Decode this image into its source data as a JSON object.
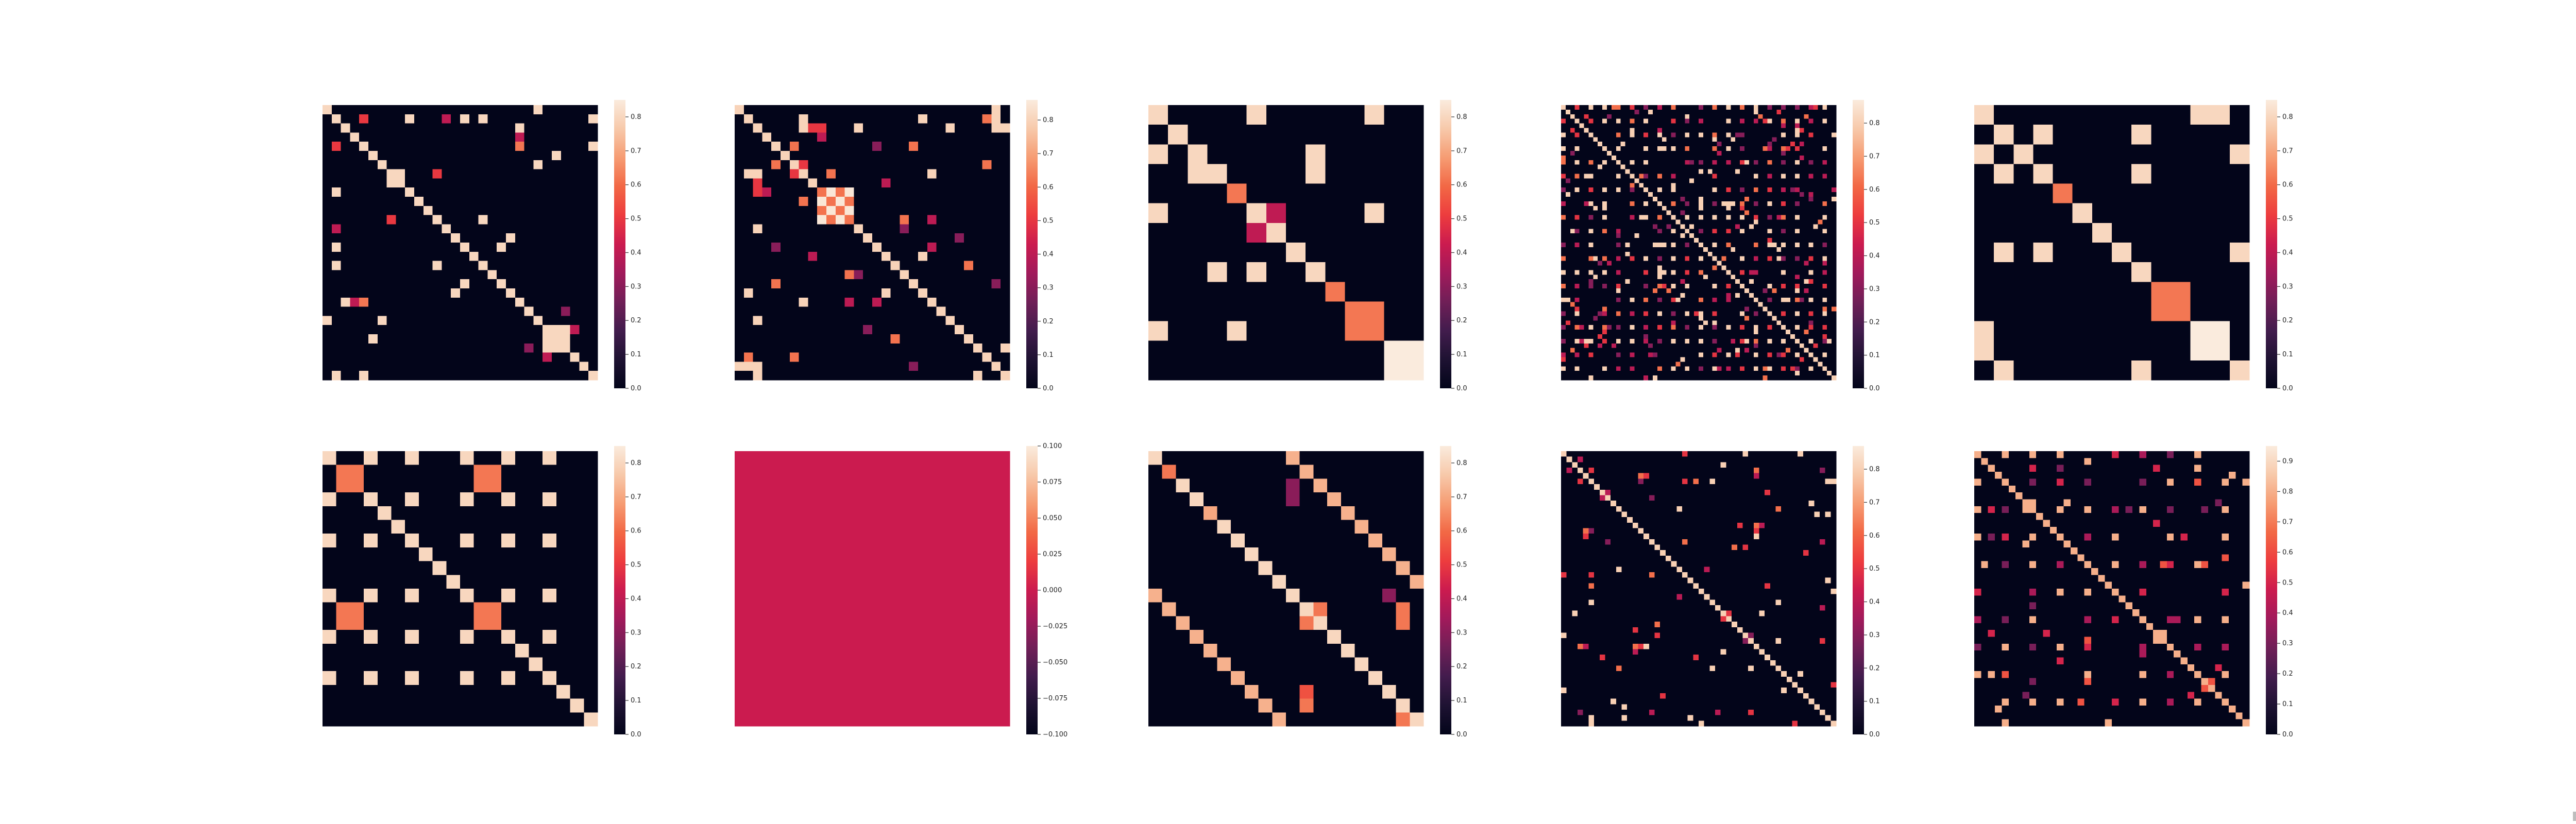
{
  "figure": {
    "grid": "2x5",
    "background": "#ffffff"
  },
  "colormap": [
    "#03051a",
    "#1e1232",
    "#421c4d",
    "#701f57",
    "#a11a5b",
    "#cb1b4f",
    "#ed3c3e",
    "#f26845",
    "#f69c73",
    "#f7c9aa",
    "#faebdd"
  ],
  "chart_data": [
    {
      "type": "heatmap",
      "size": 30,
      "vmin": 0,
      "vmax": 0.85,
      "pattern": "sparse-blocks",
      "seed": 11,
      "density": 0.05,
      "diag_value": 0.8,
      "colorbar_ticks": [
        "0.0",
        "0.1",
        "0.2",
        "0.3",
        "0.4",
        "0.5",
        "0.6",
        "0.7",
        "0.8"
      ],
      "colorbar_tick_values": [
        0.0,
        0.1,
        0.2,
        0.3,
        0.4,
        0.5,
        0.6,
        0.7,
        0.8
      ]
    },
    {
      "type": "heatmap",
      "size": 30,
      "vmin": 0,
      "vmax": 0.86,
      "pattern": "sparse-checker",
      "seed": 23,
      "density": 0.07,
      "diag_value": 0.8,
      "colorbar_ticks": [
        "0.0",
        "0.1",
        "0.2",
        "0.3",
        "0.4",
        "0.5",
        "0.6",
        "0.7",
        "0.8"
      ],
      "colorbar_tick_values": [
        0.0,
        0.1,
        0.2,
        0.3,
        0.4,
        0.5,
        0.6,
        0.7,
        0.8
      ]
    },
    {
      "type": "heatmap",
      "size": 14,
      "vmin": 0,
      "vmax": 0.85,
      "pattern": "blocks",
      "blocks": [
        [
          0,
          0,
          1,
          0.8
        ],
        [
          1,
          1,
          1,
          0.8
        ],
        [
          2,
          2,
          1,
          0.8
        ],
        [
          3,
          3,
          1,
          0.8
        ],
        [
          4,
          4,
          1,
          0.62
        ],
        [
          5,
          5,
          1,
          0.8
        ],
        [
          6,
          6,
          1,
          0.8
        ],
        [
          5,
          6,
          1,
          0.4
        ],
        [
          6,
          5,
          1,
          0.4
        ],
        [
          7,
          7,
          1,
          0.8
        ],
        [
          8,
          8,
          1,
          0.8
        ],
        [
          9,
          9,
          1,
          0.62
        ],
        [
          10,
          10,
          2,
          0.62
        ],
        [
          12,
          12,
          2,
          0.85
        ]
      ],
      "offdiag": [
        [
          0,
          5,
          0.8
        ],
        [
          0,
          11,
          0.8
        ],
        [
          2,
          0,
          0.8
        ],
        [
          3,
          2,
          0.8
        ],
        [
          2,
          8,
          0.8
        ],
        [
          3,
          8,
          0.8
        ],
        [
          5,
          0,
          0.8
        ],
        [
          5,
          11,
          0.8
        ],
        [
          8,
          3,
          0.8
        ],
        [
          8,
          5,
          0.8
        ],
        [
          11,
          0,
          0.8
        ],
        [
          11,
          4,
          0.8
        ]
      ],
      "colorbar_ticks": [
        "0.0",
        "0.1",
        "0.2",
        "0.3",
        "0.4",
        "0.5",
        "0.6",
        "0.7",
        "0.8"
      ],
      "colorbar_tick_values": [
        0.0,
        0.1,
        0.2,
        0.3,
        0.4,
        0.5,
        0.6,
        0.7,
        0.8
      ]
    },
    {
      "type": "heatmap",
      "size": 60,
      "vmin": 0,
      "vmax": 0.87,
      "pattern": "dots",
      "seed": 37,
      "density": 0.06,
      "diag_value": 0.8,
      "colorbar_ticks": [
        "0.0",
        "0.1",
        "0.2",
        "0.3",
        "0.4",
        "0.5",
        "0.6",
        "0.7",
        "0.8"
      ],
      "colorbar_tick_values": [
        0.0,
        0.1,
        0.2,
        0.3,
        0.4,
        0.5,
        0.6,
        0.7,
        0.8
      ]
    },
    {
      "type": "heatmap",
      "size": 14,
      "vmin": 0,
      "vmax": 0.85,
      "pattern": "blocks",
      "blocks": [
        [
          0,
          0,
          1,
          0.8
        ],
        [
          1,
          1,
          1,
          0.8
        ],
        [
          2,
          2,
          1,
          0.8
        ],
        [
          3,
          3,
          1,
          0.8
        ],
        [
          4,
          4,
          1,
          0.62
        ],
        [
          5,
          5,
          1,
          0.8
        ],
        [
          6,
          6,
          1,
          0.8
        ],
        [
          7,
          7,
          1,
          0.8
        ],
        [
          8,
          8,
          1,
          0.8
        ],
        [
          9,
          9,
          2,
          0.62
        ],
        [
          11,
          11,
          2,
          0.85
        ]
      ],
      "offdiag": [
        [
          0,
          11,
          0.8
        ],
        [
          0,
          12,
          0.8
        ],
        [
          1,
          3,
          0.8
        ],
        [
          1,
          8,
          0.8
        ],
        [
          2,
          0,
          0.8
        ],
        [
          2,
          13,
          0.8
        ],
        [
          3,
          1,
          0.8
        ],
        [
          3,
          8,
          0.8
        ],
        [
          7,
          1,
          0.8
        ],
        [
          7,
          3,
          0.8
        ],
        [
          7,
          13,
          0.8
        ],
        [
          11,
          0,
          0.8
        ],
        [
          12,
          0,
          0.8
        ],
        [
          13,
          1,
          0.8
        ],
        [
          13,
          8,
          0.8
        ],
        [
          13,
          13,
          0.8
        ]
      ],
      "colorbar_ticks": [
        "0.0",
        "0.1",
        "0.2",
        "0.3",
        "0.4",
        "0.5",
        "0.6",
        "0.7",
        "0.8"
      ],
      "colorbar_tick_values": [
        0.0,
        0.1,
        0.2,
        0.3,
        0.4,
        0.5,
        0.6,
        0.7,
        0.8
      ]
    },
    {
      "type": "heatmap",
      "size": 20,
      "vmin": 0,
      "vmax": 0.85,
      "pattern": "periodic",
      "period": 10,
      "block_value": 0.62,
      "dot_value": 0.8,
      "colorbar_ticks": [
        "0.0",
        "0.1",
        "0.2",
        "0.3",
        "0.4",
        "0.5",
        "0.6",
        "0.7",
        "0.8"
      ],
      "colorbar_tick_values": [
        0.0,
        0.1,
        0.2,
        0.3,
        0.4,
        0.5,
        0.6,
        0.7,
        0.8
      ]
    },
    {
      "type": "heatmap",
      "size": 1,
      "vmin": -0.1,
      "vmax": 0.1,
      "pattern": "uniform",
      "uniform_value": 0,
      "colorbar_ticks": [
        "0.100",
        "0.075",
        "0.050",
        "0.025",
        "0.000",
        "−0.025",
        "−0.050",
        "−0.075",
        "−0.100"
      ],
      "colorbar_tick_values": [
        0.1,
        0.075,
        0.05,
        0.025,
        0.0,
        -0.025,
        -0.05,
        -0.075,
        -0.1
      ]
    },
    {
      "type": "heatmap",
      "size": 20,
      "vmin": 0,
      "vmax": 0.85,
      "pattern": "double-diagonal",
      "seed": 53,
      "colorbar_ticks": [
        "0.0",
        "0.1",
        "0.2",
        "0.3",
        "0.4",
        "0.5",
        "0.6",
        "0.7",
        "0.8"
      ],
      "colorbar_tick_values": [
        0.0,
        0.1,
        0.2,
        0.3,
        0.4,
        0.5,
        0.6,
        0.7,
        0.8
      ]
    },
    {
      "type": "heatmap",
      "size": 50,
      "vmin": 0,
      "vmax": 0.87,
      "pattern": "sparse",
      "seed": 71,
      "density": 0.04,
      "diag_value": 0.8,
      "colorbar_ticks": [
        "0.0",
        "0.1",
        "0.2",
        "0.3",
        "0.4",
        "0.5",
        "0.6",
        "0.7",
        "0.8"
      ],
      "colorbar_tick_values": [
        0.0,
        0.1,
        0.2,
        0.3,
        0.4,
        0.5,
        0.6,
        0.7,
        0.8
      ]
    },
    {
      "type": "heatmap",
      "size": 40,
      "vmin": 0,
      "vmax": 0.95,
      "pattern": "grid-dots",
      "seed": 89,
      "density": 0.03,
      "diag_value": 0.8,
      "colorbar_ticks": [
        "0.0",
        "0.1",
        "0.2",
        "0.3",
        "0.4",
        "0.5",
        "0.6",
        "0.7",
        "0.8",
        "0.9"
      ],
      "colorbar_tick_values": [
        0.0,
        0.1,
        0.2,
        0.3,
        0.4,
        0.5,
        0.6,
        0.7,
        0.8,
        0.9
      ]
    }
  ]
}
